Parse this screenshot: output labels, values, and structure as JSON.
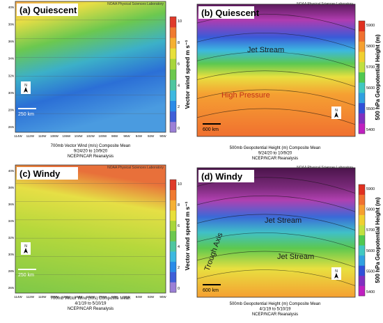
{
  "panels": [
    {
      "label": "(a) Quiescent",
      "source": "NOAA Physical Sciences Laboratory",
      "north": "N",
      "scale": "250 km",
      "lat_ticks": [
        "40N",
        "38N",
        "36N",
        "34N",
        "32N",
        "30N",
        "28N",
        "26N"
      ],
      "lon_ticks": [
        "114W",
        "112W",
        "110W",
        "108W",
        "106W",
        "104W",
        "102W",
        "100W",
        "98W",
        "96W",
        "94W",
        "92W",
        "90W"
      ],
      "colorbar": {
        "title": "Vector wind speed m s⁻¹",
        "ticks": [
          "10",
          "8",
          "6",
          "4",
          "2",
          "0"
        ]
      },
      "caption": [
        "700mb Vector Wind (m/s) Composite Mean",
        "9/24/20 to 10/9/20",
        "NCEP/NCAR Reanalysis"
      ],
      "annotations": []
    },
    {
      "label": "(b) Quiescent",
      "source": "NOAA Physical Sciences Laboratory",
      "north": "N",
      "scale": "600 km",
      "lat_ticks": [],
      "lon_ticks": [],
      "colorbar": {
        "title": "500 hPa Geopotential Height (m)",
        "ticks": [
          "5900",
          "5800",
          "5700",
          "5600",
          "5500",
          "5400"
        ]
      },
      "caption": [
        "500mb Geopotential Height (m) Composite Mean",
        "9/24/20 to 10/9/20",
        "NCEP/NCAR Reanalysis"
      ],
      "annotations": [
        "Jet Stream",
        "High Pressure"
      ]
    },
    {
      "label": "(c) Windy",
      "source": "NOAA Physical Sciences Laboratory",
      "north": "N",
      "scale": "250 km",
      "lat_ticks": [
        "40N",
        "38N",
        "36N",
        "34N",
        "32N",
        "30N",
        "28N",
        "26N"
      ],
      "lon_ticks": [
        "114W",
        "112W",
        "110W",
        "108W",
        "106W",
        "104W",
        "102W",
        "100W",
        "98W",
        "96W",
        "94W",
        "92W",
        "90W"
      ],
      "colorbar": {
        "title": "Vector wind speed m s⁻¹",
        "ticks": [
          "10",
          "8",
          "6",
          "4",
          "2",
          "0"
        ]
      },
      "caption": [
        "700mb Vector Wind (m/s) Composite Mean",
        "4/1/19 to 5/10/19",
        "NCEP/NCAR Reanalysis"
      ],
      "annotations": []
    },
    {
      "label": "(d) Windy",
      "source": "NOAA Physical Sciences Laboratory",
      "north": "N",
      "scale": "600 km",
      "lat_ticks": [],
      "lon_ticks": [],
      "colorbar": {
        "title": "500 hPa Geopotential Height (m)",
        "ticks": [
          "5900",
          "5800",
          "5700",
          "5600",
          "5500",
          "5400"
        ]
      },
      "caption": [
        "500mb Geopotential Height (m) Composite Mean",
        "4/1/19 to 5/10/19",
        "NCEP/NCAR Reanalysis"
      ],
      "annotations": [
        "Jet Stream",
        "Jet Stream",
        "Trough Axis"
      ]
    }
  ]
}
